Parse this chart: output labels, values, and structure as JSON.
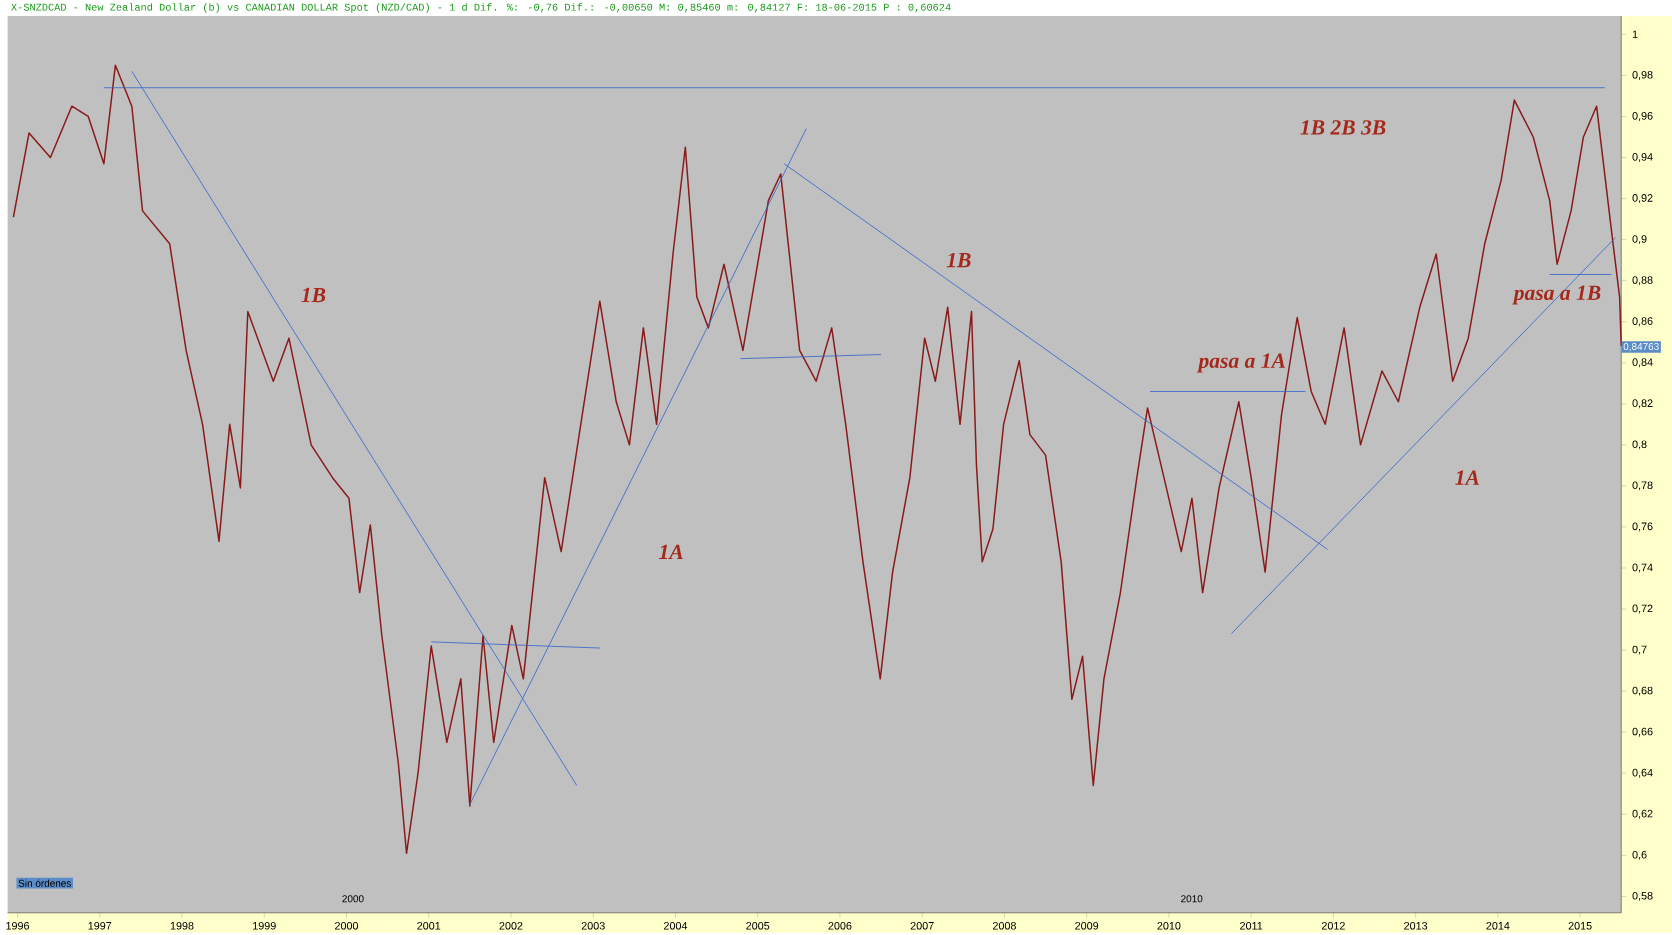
{
  "chart_data": {
    "type": "line",
    "title": "X-SNZDCAD - New Zealand Dollar (b) vs CANADIAN DOLLAR Spot (NZD/CAD) -  1 d Dif. %: -0,76 Dif.: -0,00650 M: 0,85460 m: 0,84127 F: 18-06-2015 P : 0,60624",
    "xlim": [
      1995.88,
      2015.5
    ],
    "ylim": [
      0.572,
      1.009
    ],
    "xticks": [
      1996,
      1997,
      1998,
      1999,
      2000,
      2001,
      2002,
      2003,
      2004,
      2005,
      2006,
      2007,
      2008,
      2009,
      2010,
      2011,
      2012,
      2013,
      2014,
      2015
    ],
    "yticks": [
      {
        "value": 0.58,
        "label": "0,58"
      },
      {
        "value": 0.6,
        "label": "0,6"
      },
      {
        "value": 0.62,
        "label": "0,62"
      },
      {
        "value": 0.64,
        "label": "0,64"
      },
      {
        "value": 0.66,
        "label": "0,66"
      },
      {
        "value": 0.68,
        "label": "0,68"
      },
      {
        "value": 0.7,
        "label": "0,7"
      },
      {
        "value": 0.72,
        "label": "0,72"
      },
      {
        "value": 0.74,
        "label": "0,74"
      },
      {
        "value": 0.76,
        "label": "0,76"
      },
      {
        "value": 0.78,
        "label": "0,78"
      },
      {
        "value": 0.8,
        "label": "0,8"
      },
      {
        "value": 0.82,
        "label": "0,82"
      },
      {
        "value": 0.84,
        "label": "0,84"
      },
      {
        "value": 0.86,
        "label": "0,86"
      },
      {
        "value": 0.88,
        "label": "0,88"
      },
      {
        "value": 0.9,
        "label": "0,9"
      },
      {
        "value": 0.92,
        "label": "0,92"
      },
      {
        "value": 0.94,
        "label": "0,94"
      },
      {
        "value": 0.96,
        "label": "0,96"
      },
      {
        "value": 0.98,
        "label": "0,98"
      },
      {
        "value": 1,
        "label": "1"
      }
    ],
    "series": [
      {
        "color": "#8a1a1a",
        "x": [
          1995.95,
          1996.14,
          1996.4,
          1996.66,
          1996.86,
          1997.05,
          1997.19,
          1997.39,
          1997.52,
          1997.85,
          1998.05,
          1998.25,
          1998.45,
          1998.58,
          1998.71,
          1998.8,
          1999.11,
          1999.3,
          1999.57,
          1999.83,
          2000.03,
          2000.16,
          2000.29,
          2000.43,
          2000.63,
          2000.73,
          2000.87,
          2001.03,
          2001.22,
          2001.39,
          2001.5,
          2001.66,
          2001.79,
          2002.01,
          2002.15,
          2002.41,
          2002.61,
          2003.08,
          2003.28,
          2003.44,
          2003.61,
          2003.77,
          2003.97,
          2004.12,
          2004.26,
          2004.4,
          2004.59,
          2004.82,
          2005.13,
          2005.28,
          2005.51,
          2005.71,
          2005.9,
          2006.07,
          2006.28,
          2006.49,
          2006.64,
          2006.85,
          2007.03,
          2007.16,
          2007.31,
          2007.46,
          2007.6,
          2007.66,
          2007.73,
          2007.86,
          2007.99,
          2008.18,
          2008.31,
          2008.5,
          2008.69,
          2008.82,
          2008.95,
          2009.08,
          2009.21,
          2009.41,
          2009.61,
          2009.74,
          2009.94,
          2010.15,
          2010.28,
          2010.41,
          2010.61,
          2010.85,
          2011.0,
          2011.17,
          2011.37,
          2011.56,
          2011.73,
          2011.9,
          2012.13,
          2012.33,
          2012.59,
          2012.79,
          2013.05,
          2013.25,
          2013.45,
          2013.64,
          2013.84,
          2014.04,
          2014.2,
          2014.43,
          2014.63,
          2014.72,
          2014.89,
          2015.04,
          2015.2,
          2015.37,
          2015.48,
          2015.5
        ],
        "values": [
          0.911,
          0.952,
          0.94,
          0.965,
          0.96,
          0.937,
          0.985,
          0.965,
          0.914,
          0.898,
          0.846,
          0.81,
          0.753,
          0.81,
          0.779,
          0.865,
          0.831,
          0.852,
          0.8,
          0.784,
          0.774,
          0.728,
          0.761,
          0.707,
          0.645,
          0.601,
          0.64,
          0.702,
          0.655,
          0.686,
          0.624,
          0.707,
          0.655,
          0.712,
          0.686,
          0.784,
          0.748,
          0.87,
          0.821,
          0.8,
          0.857,
          0.81,
          0.893,
          0.945,
          0.872,
          0.857,
          0.888,
          0.846,
          0.919,
          0.932,
          0.846,
          0.831,
          0.857,
          0.81,
          0.743,
          0.686,
          0.738,
          0.784,
          0.852,
          0.831,
          0.867,
          0.81,
          0.865,
          0.79,
          0.743,
          0.759,
          0.81,
          0.841,
          0.805,
          0.795,
          0.743,
          0.676,
          0.697,
          0.634,
          0.686,
          0.728,
          0.784,
          0.818,
          0.784,
          0.748,
          0.774,
          0.728,
          0.779,
          0.821,
          0.784,
          0.738,
          0.815,
          0.862,
          0.826,
          0.81,
          0.857,
          0.8,
          0.836,
          0.821,
          0.867,
          0.893,
          0.831,
          0.852,
          0.898,
          0.929,
          0.968,
          0.95,
          0.919,
          0.888,
          0.914,
          0.95,
          0.965,
          0.908,
          0.872,
          0.848
        ]
      },
      {
        "color": "#3366cc",
        "x": [
          1997.05,
          2015.3
        ],
        "values": [
          0.974,
          0.974
        ]
      },
      {
        "color": "#3366cc",
        "x": [
          1997.39,
          2002.8
        ],
        "values": [
          0.982,
          0.634
        ]
      },
      {
        "color": "#3366cc",
        "x": [
          2001.49,
          2005.59
        ],
        "values": [
          0.624,
          0.954
        ]
      },
      {
        "color": "#3366cc",
        "x": [
          2005.32,
          2011.93
        ],
        "values": [
          0.937,
          0.749
        ]
      },
      {
        "color": "#3366cc",
        "x": [
          2010.76,
          2015.43
        ],
        "values": [
          0.708,
          0.901
        ]
      },
      {
        "color": "#3366cc",
        "x": [
          2001.03,
          2003.08
        ],
        "values": [
          0.704,
          0.701
        ]
      },
      {
        "color": "#3366cc",
        "x": [
          2004.79,
          2006.5
        ],
        "values": [
          0.842,
          0.844
        ]
      },
      {
        "color": "#3366cc",
        "x": [
          2009.77,
          2011.66
        ],
        "values": [
          0.826,
          0.826
        ]
      },
      {
        "color": "#3366cc",
        "x": [
          2014.63,
          2015.38
        ],
        "values": [
          0.883,
          0.883
        ]
      }
    ],
    "annotations": [
      "1B",
      "1A",
      "1B",
      "pasa a 1A",
      "1B 2B 3B",
      "1A",
      "pasa a 1B",
      "2000",
      "2010",
      "Sin órdenes",
      {
        "text": "0,84763",
        "x": 2015.5,
        "y": 0.84763
      }
    ]
  }
}
